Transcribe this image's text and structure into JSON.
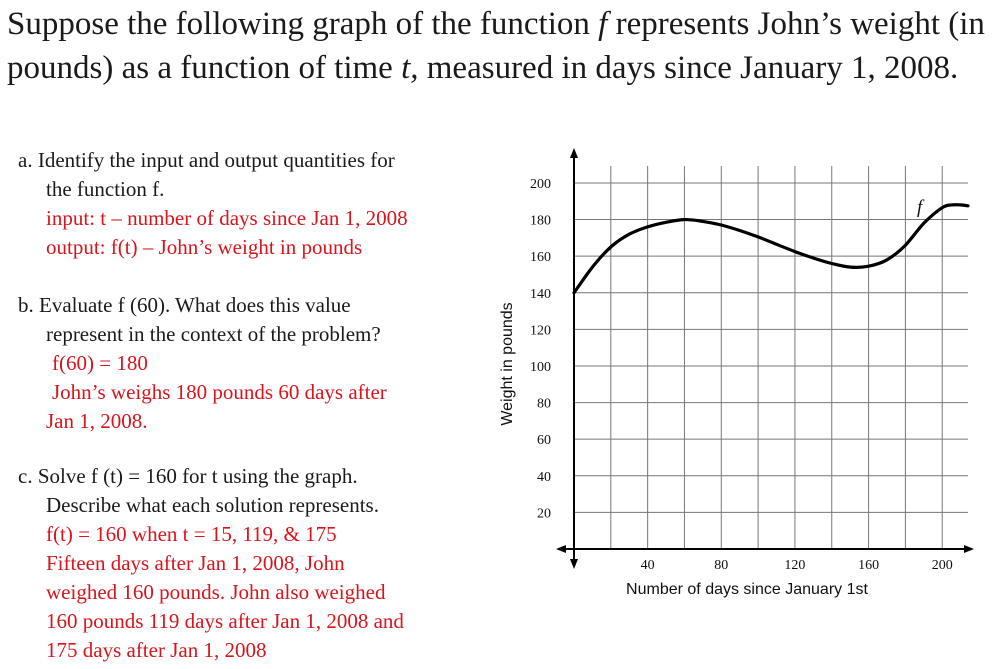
{
  "intro": {
    "p1": "Suppose the following graph of the function ",
    "f": "f",
    "p2": " represents John’s weight (in pounds) as a function of time ",
    "t": "t,",
    "p3": " measured in days since January 1, 2008."
  },
  "questions": {
    "a": {
      "prompt_line1": "a. Identify the input and output quantities for",
      "prompt_line2": "the function f.",
      "answer_input": "input: t – number of days since Jan 1, 2008",
      "answer_output": "output: f(t) – John’s weight in pounds"
    },
    "b": {
      "prompt_line1": "b. Evaluate f (60). What does this value",
      "prompt_line2": "represent in the context of the problem?",
      "answer_value": "f(60) = 180",
      "answer_line1": "John’s weighs 180 pounds 60 days after",
      "answer_line2": "Jan 1, 2008."
    },
    "c": {
      "prompt_line1": "c. Solve f (t) = 160 for t using the graph.",
      "prompt_line2": "Describe what each solution represents.",
      "answer_value": "f(t) = 160 when t = 15, 119, & 175",
      "answer_line1": "Fifteen days after Jan 1, 2008, John",
      "answer_line2": "weighed 160 pounds. John also weighed",
      "answer_line3": "160 pounds 119 days after Jan 1, 2008 and",
      "answer_line4": "175 days after Jan 1, 2008"
    }
  },
  "chart_data": {
    "type": "line",
    "xlabel": "Number of days since January 1st",
    "ylabel": "Weight in pounds",
    "curve_label": "f",
    "xlim": [
      0,
      214
    ],
    "ylim": [
      0,
      218
    ],
    "x_ticks": [
      40,
      80,
      120,
      160,
      200
    ],
    "y_ticks": [
      20,
      40,
      60,
      80,
      100,
      120,
      140,
      160,
      180,
      200
    ],
    "grid_x_step": 20,
    "grid_y_step": 20,
    "grid": true,
    "series": [
      {
        "x": [
          0,
          10,
          20,
          30,
          40,
          50,
          60,
          70,
          80,
          90,
          100,
          110,
          120,
          130,
          140,
          150,
          160,
          170,
          180,
          190,
          200,
          205,
          210,
          214
        ],
        "y": [
          140,
          154,
          165,
          172,
          176,
          178.5,
          180,
          179,
          177,
          174,
          170.5,
          166.5,
          162.5,
          159,
          156,
          154,
          154.5,
          158,
          166,
          178,
          186.5,
          188,
          188,
          187.5
        ]
      }
    ]
  },
  "colors": {
    "answer": "#d8141c",
    "text": "#1a1a1a",
    "grid": "#777777",
    "curve": "#000000"
  }
}
